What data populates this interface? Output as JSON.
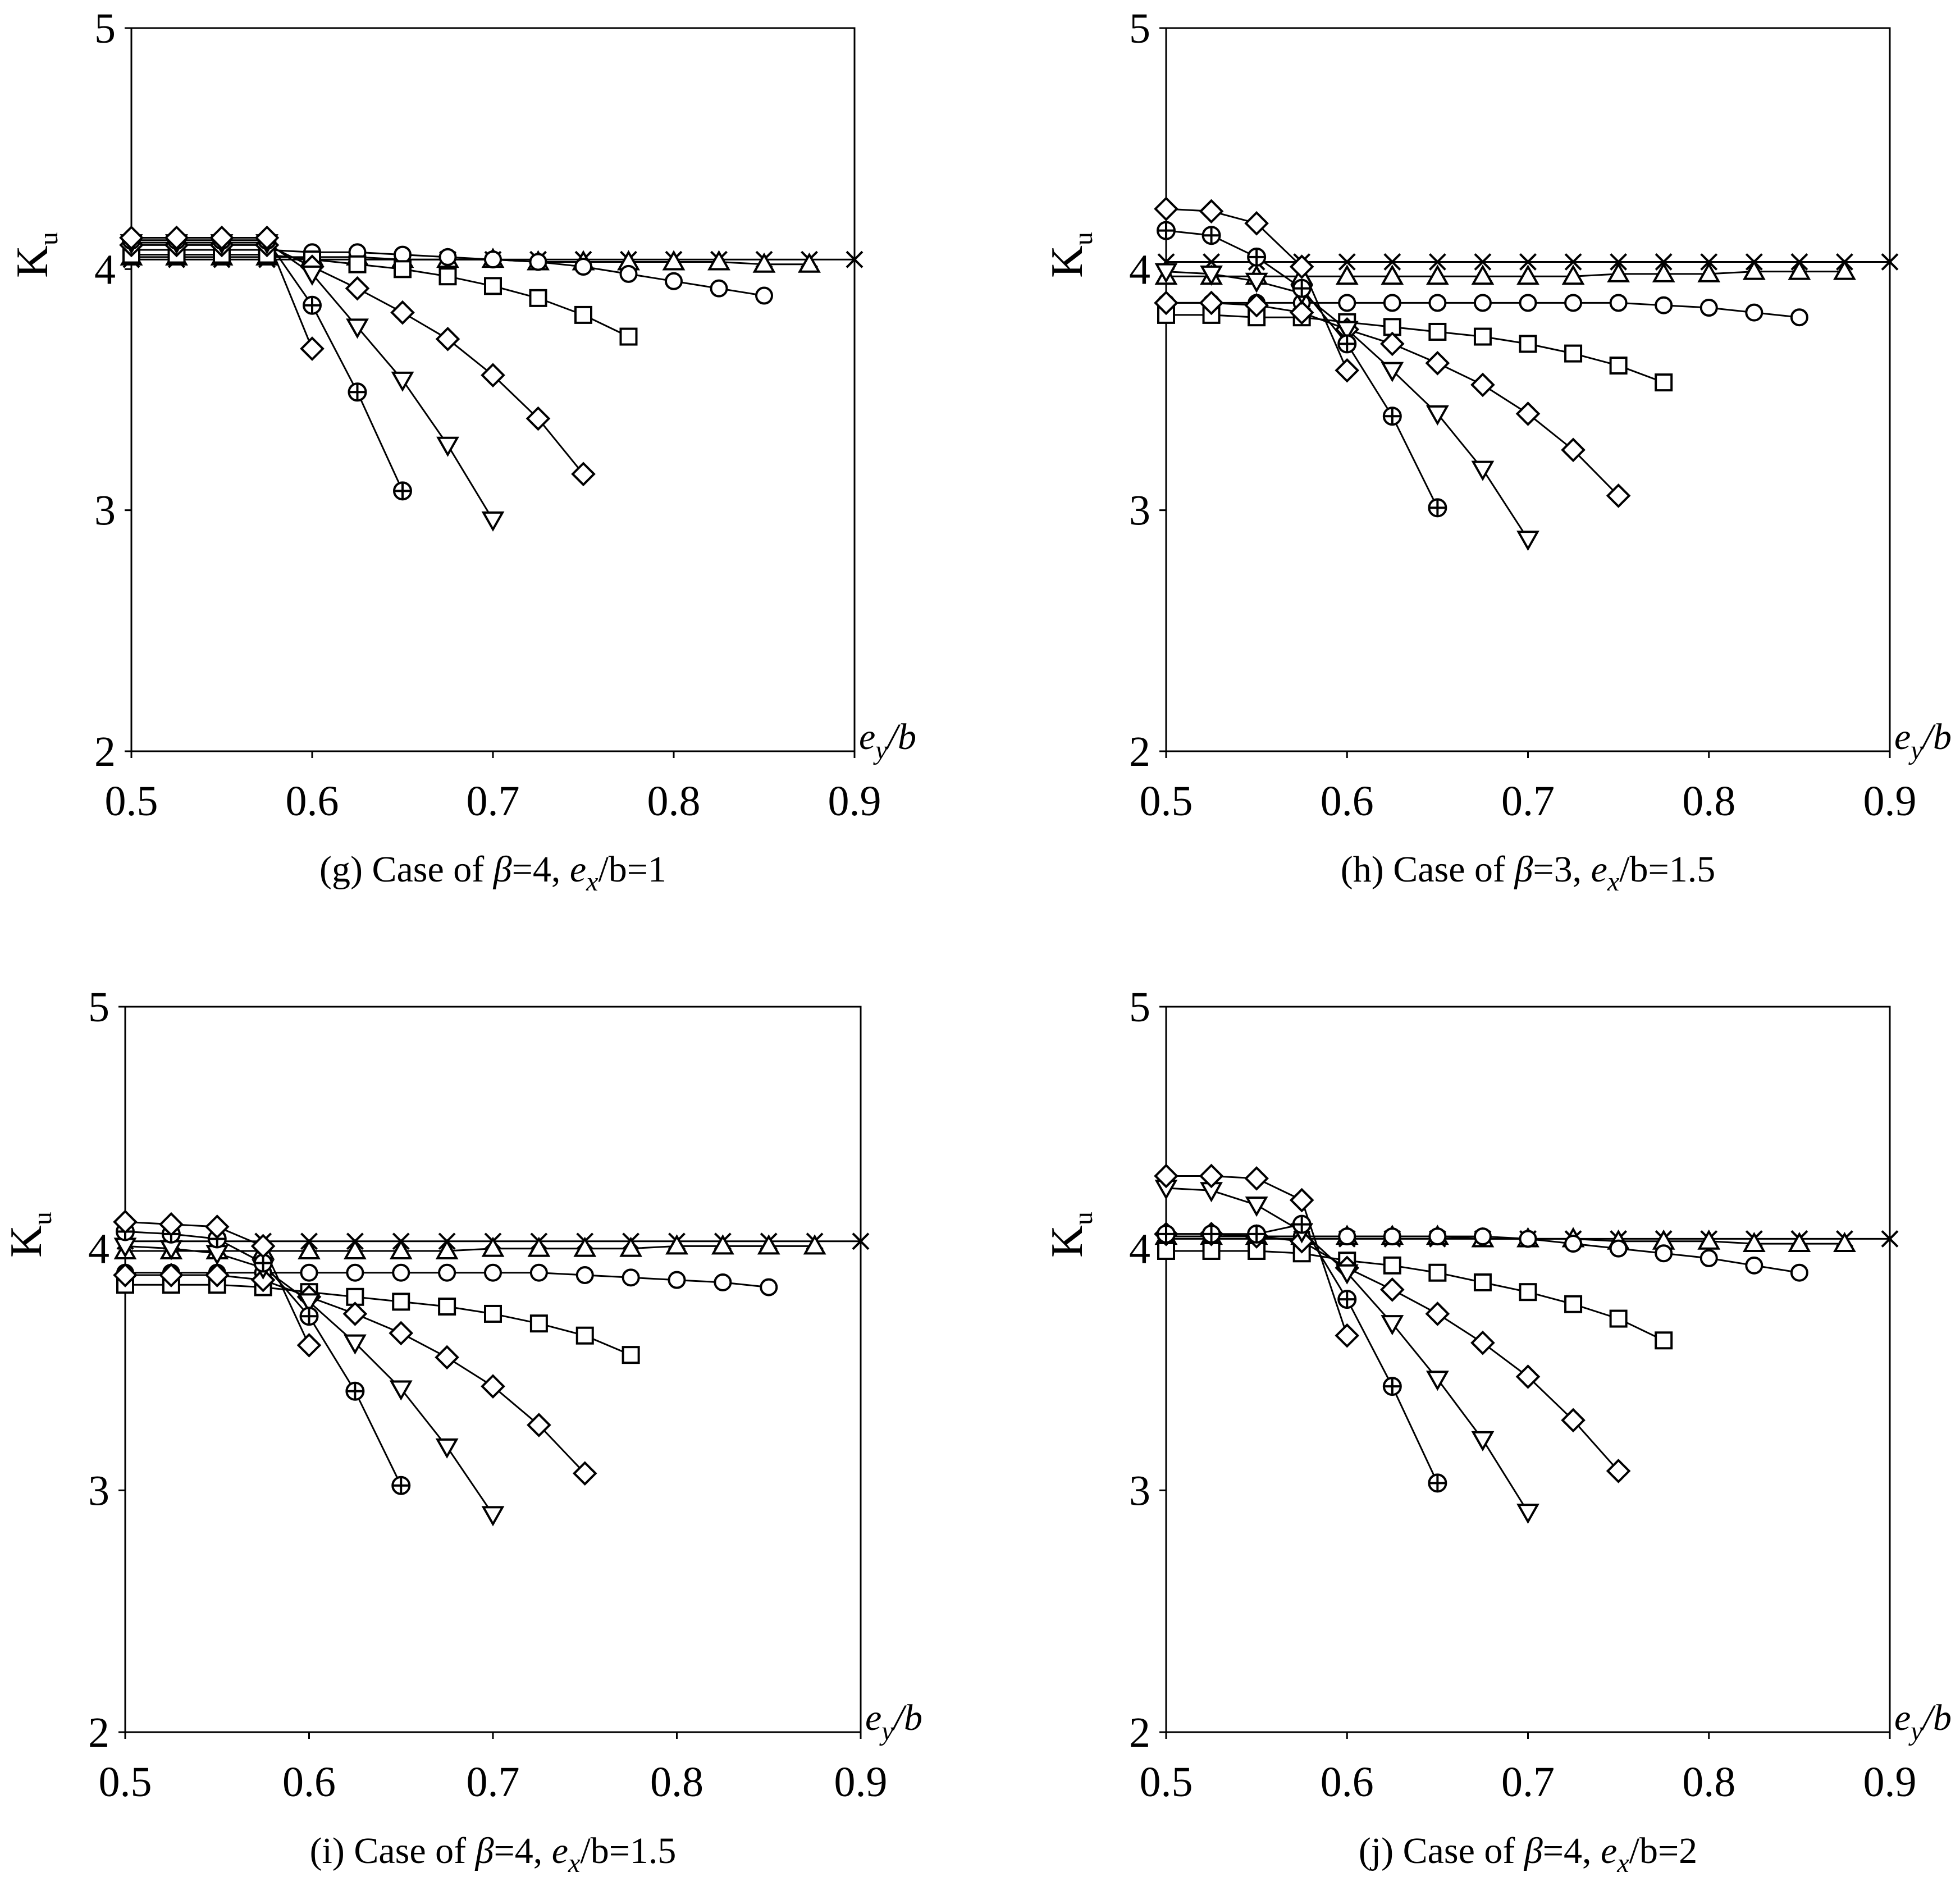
{
  "chart_data": [
    {
      "type": "line",
      "caption": {
        "prefix": "(g) Case of ",
        "beta_symbol": "β",
        "beta_value": "=4, ",
        "ex_e": "e",
        "ex_sub": "x",
        "ex_rest": "/b=1"
      },
      "ylabel": {
        "main": "K",
        "sub": "u"
      },
      "xlabel": {
        "e": "e",
        "sub": "y",
        "rest": "/b"
      },
      "xlim": [
        0.5,
        0.9
      ],
      "ylim": [
        2,
        5
      ],
      "xticks": [
        "0.5",
        "0.6",
        "0.7",
        "0.8",
        "0.9"
      ],
      "yticks": [
        "2",
        "3",
        "4",
        "5"
      ],
      "series": [
        {
          "name": "cross",
          "x": [
            0.5,
            0.525,
            0.55,
            0.575,
            0.6,
            0.625,
            0.65,
            0.675,
            0.7,
            0.725,
            0.75,
            0.775,
            0.8,
            0.825,
            0.85,
            0.875,
            0.9
          ],
          "values": [
            4.04,
            4.04,
            4.04,
            4.04,
            4.04,
            4.04,
            4.04,
            4.04,
            4.04,
            4.04,
            4.04,
            4.04,
            4.04,
            4.04,
            4.04,
            4.04,
            4.04
          ]
        },
        {
          "name": "triangle",
          "x": [
            0.5,
            0.525,
            0.55,
            0.575,
            0.6,
            0.625,
            0.65,
            0.675,
            0.7,
            0.725,
            0.75,
            0.775,
            0.8,
            0.825,
            0.85,
            0.875
          ],
          "values": [
            4.05,
            4.05,
            4.05,
            4.05,
            4.05,
            4.05,
            4.04,
            4.04,
            4.04,
            4.03,
            4.03,
            4.03,
            4.03,
            4.03,
            4.02,
            4.02
          ]
        },
        {
          "name": "circle",
          "x": [
            0.5,
            0.525,
            0.55,
            0.575,
            0.6,
            0.625,
            0.65,
            0.675,
            0.7,
            0.725,
            0.75,
            0.775,
            0.8,
            0.825,
            0.85
          ],
          "values": [
            4.08,
            4.08,
            4.08,
            4.08,
            4.07,
            4.07,
            4.06,
            4.05,
            4.04,
            4.03,
            4.01,
            3.98,
            3.95,
            3.92,
            3.89
          ]
        },
        {
          "name": "square",
          "x": [
            0.5,
            0.525,
            0.55,
            0.575,
            0.6,
            0.625,
            0.65,
            0.675,
            0.7,
            0.725,
            0.75,
            0.775
          ],
          "values": [
            4.06,
            4.06,
            4.06,
            4.06,
            4.04,
            4.02,
            4.0,
            3.97,
            3.93,
            3.88,
            3.81,
            3.72
          ]
        },
        {
          "name": "diamond-large",
          "x": [
            0.5,
            0.525,
            0.55,
            0.575,
            0.6,
            0.625,
            0.65,
            0.675,
            0.7,
            0.725,
            0.75
          ],
          "values": [
            4.1,
            4.1,
            4.1,
            4.1,
            4.01,
            3.92,
            3.82,
            3.71,
            3.56,
            3.38,
            3.15
          ]
        },
        {
          "name": "triangle-down",
          "x": [
            0.5,
            0.525,
            0.55,
            0.575,
            0.6,
            0.625,
            0.65,
            0.675,
            0.7
          ],
          "values": [
            4.11,
            4.11,
            4.11,
            4.11,
            3.98,
            3.76,
            3.54,
            3.27,
            2.96
          ]
        },
        {
          "name": "circle-plus",
          "x": [
            0.5,
            0.525,
            0.55,
            0.575,
            0.6,
            0.625,
            0.65
          ],
          "values": [
            4.12,
            4.12,
            4.12,
            4.12,
            3.85,
            3.49,
            3.08
          ]
        },
        {
          "name": "diamond-small",
          "x": [
            0.5,
            0.525,
            0.55,
            0.575,
            0.6
          ],
          "values": [
            4.13,
            4.13,
            4.13,
            4.13,
            3.67
          ]
        }
      ]
    },
    {
      "type": "line",
      "caption": {
        "prefix": "(h) Case of ",
        "beta_symbol": "β",
        "beta_value": "=3, ",
        "ex_e": "e",
        "ex_sub": "x",
        "ex_rest": "/b=1.5"
      },
      "ylabel": {
        "main": "K",
        "sub": "u"
      },
      "xlabel": {
        "e": "e",
        "sub": "y",
        "rest": "/b"
      },
      "xlim": [
        0.5,
        0.9
      ],
      "ylim": [
        2,
        5
      ],
      "xticks": [
        "0.5",
        "0.6",
        "0.7",
        "0.8",
        "0.9"
      ],
      "yticks": [
        "2",
        "3",
        "4",
        "5"
      ],
      "series": [
        {
          "name": "cross",
          "x": [
            0.5,
            0.525,
            0.55,
            0.575,
            0.6,
            0.625,
            0.65,
            0.675,
            0.7,
            0.725,
            0.75,
            0.775,
            0.8,
            0.825,
            0.85,
            0.875,
            0.9
          ],
          "values": [
            4.03,
            4.03,
            4.03,
            4.03,
            4.03,
            4.03,
            4.03,
            4.03,
            4.03,
            4.03,
            4.03,
            4.03,
            4.03,
            4.03,
            4.03,
            4.03,
            4.03
          ]
        },
        {
          "name": "triangle",
          "x": [
            0.5,
            0.525,
            0.55,
            0.575,
            0.6,
            0.625,
            0.65,
            0.675,
            0.7,
            0.725,
            0.75,
            0.775,
            0.8,
            0.825,
            0.85,
            0.875
          ],
          "values": [
            3.97,
            3.97,
            3.97,
            3.97,
            3.97,
            3.97,
            3.97,
            3.97,
            3.97,
            3.97,
            3.98,
            3.98,
            3.98,
            3.99,
            3.99,
            3.99
          ]
        },
        {
          "name": "circle",
          "x": [
            0.5,
            0.525,
            0.55,
            0.575,
            0.6,
            0.625,
            0.65,
            0.675,
            0.7,
            0.725,
            0.75,
            0.775,
            0.8,
            0.825,
            0.85
          ],
          "values": [
            3.86,
            3.86,
            3.86,
            3.86,
            3.86,
            3.86,
            3.86,
            3.86,
            3.86,
            3.86,
            3.86,
            3.85,
            3.84,
            3.82,
            3.8
          ]
        },
        {
          "name": "square",
          "x": [
            0.5,
            0.525,
            0.55,
            0.575,
            0.6,
            0.625,
            0.65,
            0.675,
            0.7,
            0.725,
            0.75,
            0.775
          ],
          "values": [
            3.81,
            3.81,
            3.8,
            3.8,
            3.78,
            3.76,
            3.74,
            3.72,
            3.69,
            3.65,
            3.6,
            3.53
          ]
        },
        {
          "name": "diamond-large",
          "x": [
            0.5,
            0.525,
            0.55,
            0.575,
            0.6,
            0.625,
            0.65,
            0.675,
            0.7,
            0.725,
            0.75
          ],
          "values": [
            3.86,
            3.86,
            3.85,
            3.82,
            3.75,
            3.69,
            3.61,
            3.52,
            3.4,
            3.25,
            3.06
          ]
        },
        {
          "name": "triangle-down",
          "x": [
            0.5,
            0.525,
            0.55,
            0.575,
            0.6,
            0.625,
            0.65,
            0.675,
            0.7
          ],
          "values": [
            3.99,
            3.98,
            3.95,
            3.9,
            3.75,
            3.58,
            3.4,
            3.17,
            2.88
          ]
        },
        {
          "name": "circle-plus",
          "x": [
            0.5,
            0.525,
            0.55,
            0.575,
            0.6,
            0.625,
            0.65
          ],
          "values": [
            4.16,
            4.14,
            4.05,
            3.92,
            3.69,
            3.39,
            3.01
          ]
        },
        {
          "name": "diamond-small",
          "x": [
            0.5,
            0.525,
            0.55,
            0.575,
            0.6
          ],
          "values": [
            4.25,
            4.24,
            4.19,
            4.01,
            3.58
          ]
        }
      ]
    },
    {
      "type": "line",
      "caption": {
        "prefix": "(i) Case of ",
        "beta_symbol": "β",
        "beta_value": "=4, ",
        "ex_e": "e",
        "ex_sub": "x",
        "ex_rest": "/b=1.5"
      },
      "ylabel": {
        "main": "K",
        "sub": "u"
      },
      "xlabel": {
        "e": "e",
        "sub": "y",
        "rest": "/b"
      },
      "xlim": [
        0.5,
        0.9
      ],
      "ylim": [
        2,
        5
      ],
      "xticks": [
        "0.5",
        "0.6",
        "0.7",
        "0.8",
        "0.9"
      ],
      "yticks": [
        "2",
        "3",
        "4",
        "5"
      ],
      "series": [
        {
          "name": "cross",
          "x": [
            0.5,
            0.525,
            0.55,
            0.575,
            0.6,
            0.625,
            0.65,
            0.675,
            0.7,
            0.725,
            0.75,
            0.775,
            0.8,
            0.825,
            0.85,
            0.875,
            0.9
          ],
          "values": [
            4.03,
            4.03,
            4.03,
            4.03,
            4.03,
            4.03,
            4.03,
            4.03,
            4.03,
            4.03,
            4.03,
            4.03,
            4.03,
            4.03,
            4.03,
            4.03,
            4.03
          ]
        },
        {
          "name": "triangle",
          "x": [
            0.5,
            0.525,
            0.55,
            0.575,
            0.6,
            0.625,
            0.65,
            0.675,
            0.7,
            0.725,
            0.75,
            0.775,
            0.8,
            0.825,
            0.85,
            0.875
          ],
          "values": [
            3.99,
            3.99,
            3.99,
            3.99,
            3.99,
            3.99,
            3.99,
            3.99,
            4.0,
            4.0,
            4.0,
            4.0,
            4.01,
            4.01,
            4.01,
            4.01
          ]
        },
        {
          "name": "circle",
          "x": [
            0.5,
            0.525,
            0.55,
            0.575,
            0.6,
            0.625,
            0.65,
            0.675,
            0.7,
            0.725,
            0.75,
            0.775,
            0.8,
            0.825,
            0.85
          ],
          "values": [
            3.9,
            3.9,
            3.9,
            3.9,
            3.9,
            3.9,
            3.9,
            3.9,
            3.9,
            3.9,
            3.89,
            3.88,
            3.87,
            3.86,
            3.84
          ]
        },
        {
          "name": "square",
          "x": [
            0.5,
            0.525,
            0.55,
            0.575,
            0.6,
            0.625,
            0.65,
            0.675,
            0.7,
            0.725,
            0.75,
            0.775
          ],
          "values": [
            3.85,
            3.85,
            3.85,
            3.84,
            3.82,
            3.8,
            3.78,
            3.76,
            3.73,
            3.69,
            3.64,
            3.56
          ]
        },
        {
          "name": "diamond-large",
          "x": [
            0.5,
            0.525,
            0.55,
            0.575,
            0.6,
            0.625,
            0.65,
            0.675,
            0.7,
            0.725,
            0.75
          ],
          "values": [
            3.89,
            3.89,
            3.89,
            3.87,
            3.8,
            3.73,
            3.65,
            3.55,
            3.43,
            3.27,
            3.07
          ]
        },
        {
          "name": "triangle-down",
          "x": [
            0.5,
            0.525,
            0.55,
            0.575,
            0.6,
            0.625,
            0.65,
            0.675,
            0.7
          ],
          "values": [
            4.01,
            4.0,
            3.98,
            3.92,
            3.78,
            3.61,
            3.42,
            3.18,
            2.9
          ]
        },
        {
          "name": "circle-plus",
          "x": [
            0.5,
            0.525,
            0.55,
            0.575,
            0.6,
            0.625,
            0.65
          ],
          "values": [
            4.07,
            4.06,
            4.04,
            3.94,
            3.72,
            3.41,
            3.02
          ]
        },
        {
          "name": "diamond-small",
          "x": [
            0.5,
            0.525,
            0.55,
            0.575,
            0.6
          ],
          "values": [
            4.11,
            4.1,
            4.09,
            4.01,
            3.6
          ]
        }
      ]
    },
    {
      "type": "line",
      "caption": {
        "prefix": "(j) Case of ",
        "beta_symbol": "β",
        "beta_value": "=4, ",
        "ex_e": "e",
        "ex_sub": "x",
        "ex_rest": "/b=2"
      },
      "ylabel": {
        "main": "K",
        "sub": "u"
      },
      "xlabel": {
        "e": "e",
        "sub": "y",
        "rest": "/b"
      },
      "xlim": [
        0.5,
        0.9
      ],
      "ylim": [
        2,
        5
      ],
      "xticks": [
        "0.5",
        "0.6",
        "0.7",
        "0.8",
        "0.9"
      ],
      "yticks": [
        "2",
        "3",
        "4",
        "5"
      ],
      "series": [
        {
          "name": "cross",
          "x": [
            0.5,
            0.525,
            0.55,
            0.575,
            0.6,
            0.625,
            0.65,
            0.675,
            0.7,
            0.725,
            0.75,
            0.775,
            0.8,
            0.825,
            0.85,
            0.875,
            0.9
          ],
          "values": [
            4.04,
            4.04,
            4.04,
            4.04,
            4.04,
            4.04,
            4.04,
            4.04,
            4.04,
            4.04,
            4.04,
            4.04,
            4.04,
            4.04,
            4.04,
            4.04,
            4.04
          ]
        },
        {
          "name": "triangle",
          "x": [
            0.5,
            0.525,
            0.55,
            0.575,
            0.6,
            0.625,
            0.65,
            0.675,
            0.7,
            0.725,
            0.75,
            0.775,
            0.8,
            0.825,
            0.85,
            0.875
          ],
          "values": [
            4.05,
            4.05,
            4.05,
            4.05,
            4.05,
            4.05,
            4.05,
            4.04,
            4.04,
            4.04,
            4.03,
            4.03,
            4.03,
            4.02,
            4.02,
            4.02
          ]
        },
        {
          "name": "circle",
          "x": [
            0.5,
            0.525,
            0.55,
            0.575,
            0.6,
            0.625,
            0.65,
            0.675,
            0.7,
            0.725,
            0.75,
            0.775,
            0.8,
            0.825,
            0.85
          ],
          "values": [
            4.05,
            4.05,
            4.05,
            4.05,
            4.05,
            4.05,
            4.05,
            4.05,
            4.04,
            4.02,
            4.0,
            3.98,
            3.96,
            3.93,
            3.9
          ]
        },
        {
          "name": "square",
          "x": [
            0.5,
            0.525,
            0.55,
            0.575,
            0.6,
            0.625,
            0.65,
            0.675,
            0.7,
            0.725,
            0.75,
            0.775
          ],
          "values": [
            3.99,
            3.99,
            3.99,
            3.98,
            3.95,
            3.93,
            3.9,
            3.86,
            3.82,
            3.77,
            3.71,
            3.62
          ]
        },
        {
          "name": "diamond-large",
          "x": [
            0.5,
            0.525,
            0.55,
            0.575,
            0.6,
            0.625,
            0.65,
            0.675,
            0.7,
            0.725,
            0.75
          ],
          "values": [
            4.06,
            4.06,
            4.05,
            4.03,
            3.92,
            3.83,
            3.73,
            3.61,
            3.47,
            3.29,
            3.08
          ]
        },
        {
          "name": "triangle-down",
          "x": [
            0.5,
            0.525,
            0.55,
            0.575,
            0.6,
            0.625,
            0.65,
            0.675,
            0.7
          ],
          "values": [
            4.25,
            4.24,
            4.18,
            4.07,
            3.9,
            3.69,
            3.46,
            3.21,
            2.91
          ]
        },
        {
          "name": "circle-plus",
          "x": [
            0.5,
            0.525,
            0.55,
            0.575,
            0.6,
            0.625,
            0.65
          ],
          "values": [
            4.06,
            4.06,
            4.06,
            4.1,
            3.79,
            3.43,
            3.03
          ]
        },
        {
          "name": "diamond-small",
          "x": [
            0.5,
            0.525,
            0.55,
            0.575,
            0.6
          ],
          "values": [
            4.3,
            4.3,
            4.29,
            4.2,
            3.64
          ]
        }
      ]
    }
  ]
}
